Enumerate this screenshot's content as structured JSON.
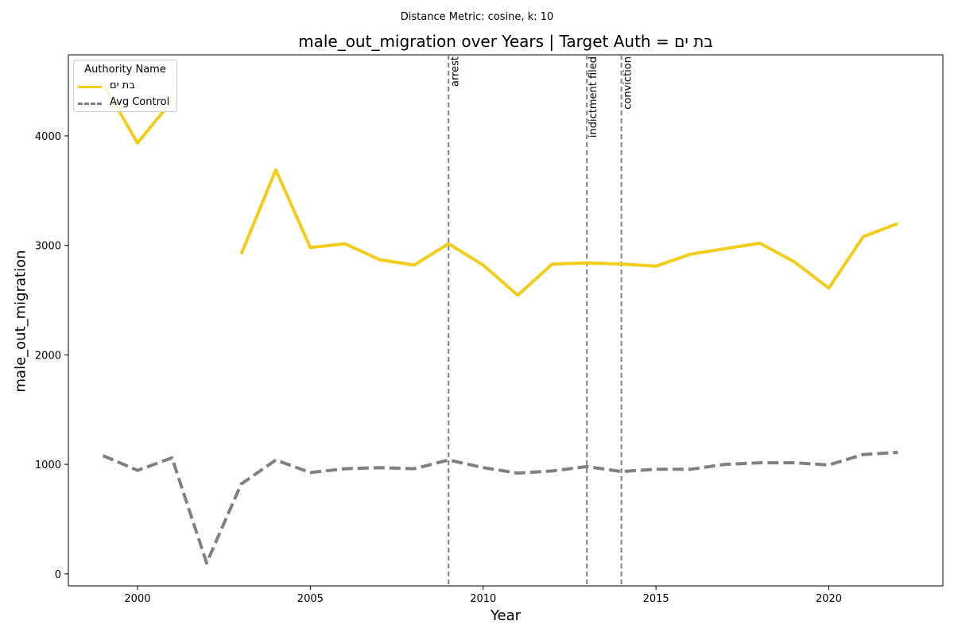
{
  "chart_data": {
    "type": "line",
    "suptitle": "Distance Metric: cosine, k: 10",
    "title": "male_out_migration over Years | Target Auth = בת ים",
    "xlabel": "Year",
    "ylabel": "male_out_migration",
    "xlim": [
      1998,
      2023.3
    ],
    "ylim": [
      -110,
      4740
    ],
    "xticks": [
      2000,
      2005,
      2010,
      2015,
      2020
    ],
    "yticks": [
      0,
      1000,
      2000,
      3000,
      4000
    ],
    "legend": {
      "title": "Authority Name",
      "position": "top-left"
    },
    "series": [
      {
        "name": "בת ים",
        "color": "#f2cd1c",
        "style": "solid",
        "x": [
          1999,
          2000,
          2001,
          2002,
          2003,
          2004,
          2005,
          2006,
          2007,
          2008,
          2009,
          2010,
          2011,
          2012,
          2013,
          2014,
          2015,
          2016,
          2017,
          2018,
          2019,
          2020,
          2021,
          2022
        ],
        "values": [
          4480,
          3935,
          4320,
          null,
          2920,
          3690,
          2980,
          3015,
          2870,
          2820,
          3015,
          2820,
          2545,
          2830,
          2840,
          2830,
          2810,
          2920,
          2970,
          3020,
          2850,
          2610,
          3080,
          3200
        ]
      },
      {
        "name": "Avg Control",
        "color": "#808080",
        "style": "dashed",
        "x": [
          1999,
          2000,
          2001,
          2002,
          2003,
          2004,
          2005,
          2006,
          2007,
          2008,
          2009,
          2010,
          2011,
          2012,
          2013,
          2014,
          2015,
          2016,
          2017,
          2018,
          2019,
          2020,
          2021,
          2022
        ],
        "values": [
          1080,
          945,
          1060,
          100,
          820,
          1040,
          925,
          960,
          970,
          960,
          1040,
          970,
          920,
          940,
          980,
          935,
          955,
          955,
          1000,
          1015,
          1015,
          995,
          1090,
          1110
        ]
      }
    ],
    "events": [
      {
        "x": 2009,
        "label": "arrest"
      },
      {
        "x": 2013,
        "label": "indictment filed"
      },
      {
        "x": 2014,
        "label": "conviction"
      }
    ]
  }
}
